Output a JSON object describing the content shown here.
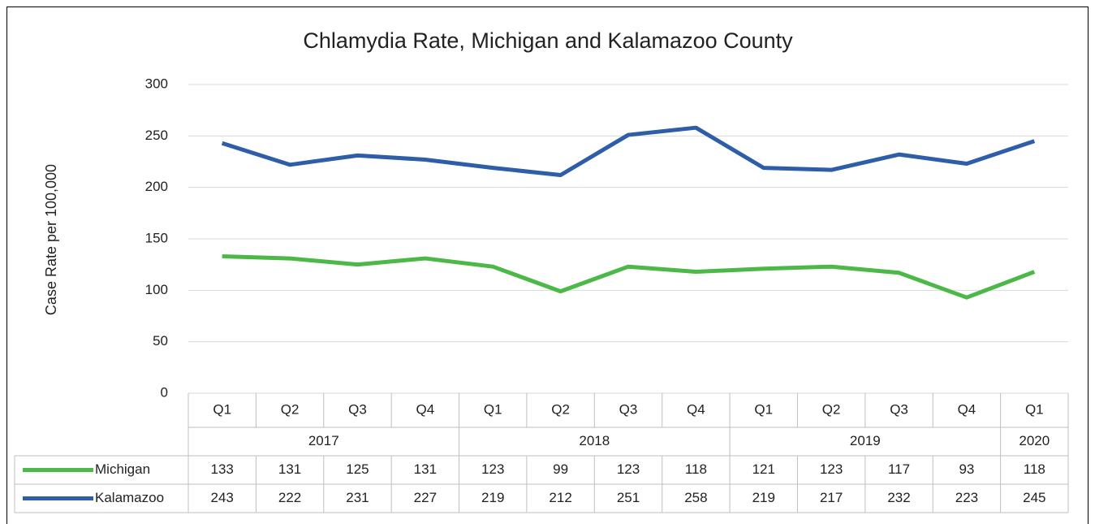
{
  "chart_data": {
    "type": "line",
    "title": "Chlamydia Rate, Michigan and Kalamazoo County",
    "y_label": "Case Rate per 100,000",
    "category_groups": [
      {
        "name": "2017",
        "categories": [
          "Q1",
          "Q2",
          "Q3",
          "Q4"
        ]
      },
      {
        "name": "2018",
        "categories": [
          "Q1",
          "Q2",
          "Q3",
          "Q4"
        ]
      },
      {
        "name": "2019",
        "categories": [
          "Q1",
          "Q2",
          "Q3",
          "Q4"
        ]
      },
      {
        "name": "2020",
        "categories": [
          "Q1"
        ]
      }
    ],
    "series": [
      {
        "name": "Michigan",
        "color": "#4cb848",
        "values": [
          133,
          131,
          125,
          131,
          123,
          99,
          123,
          118,
          121,
          123,
          117,
          93,
          118
        ]
      },
      {
        "name": "Kalamazoo",
        "color": "#2e5ea8",
        "values": [
          243,
          222,
          231,
          227,
          219,
          212,
          251,
          258,
          219,
          217,
          232,
          223,
          245
        ]
      }
    ],
    "ylim": [
      0,
      300
    ],
    "yticks": [
      0,
      50,
      100,
      150,
      200,
      250,
      300
    ],
    "grid": true
  }
}
